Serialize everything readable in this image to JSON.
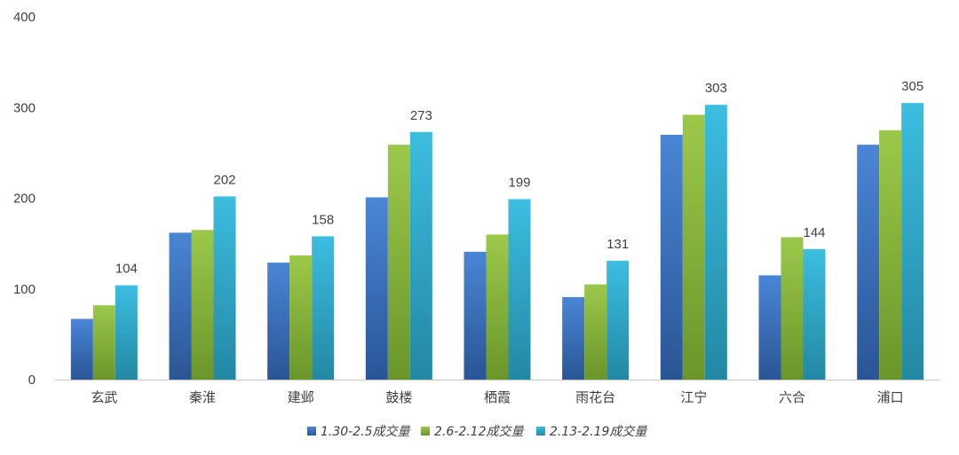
{
  "chart_data": {
    "type": "bar",
    "categories": [
      "玄武",
      "秦淮",
      "建邺",
      "鼓楼",
      "栖霞",
      "雨花台",
      "江宁",
      "六合",
      "浦口"
    ],
    "series": [
      {
        "name": "1.30-2.5成交量",
        "values": [
          67,
          162,
          129,
          201,
          141,
          91,
          270,
          115,
          259
        ]
      },
      {
        "name": "2.6-2.12成交量",
        "values": [
          82,
          165,
          137,
          259,
          160,
          105,
          292,
          157,
          275
        ]
      },
      {
        "name": "2.13-2.19成交量",
        "values": [
          104,
          202,
          158,
          273,
          199,
          131,
          303,
          144,
          305
        ]
      }
    ],
    "data_labels_series": 2,
    "ylim": [
      0,
      400
    ],
    "yticks": [
      0,
      100,
      200,
      300,
      400
    ],
    "grid": false,
    "legend": "bottom",
    "colors": {
      "series": [
        [
          "#4a86d6",
          "#2a5596"
        ],
        [
          "#9cc84a",
          "#6a962a"
        ],
        [
          "#3cbde0",
          "#2388a4"
        ]
      ],
      "axis": "#c8c8c8",
      "text": "#404040"
    }
  }
}
